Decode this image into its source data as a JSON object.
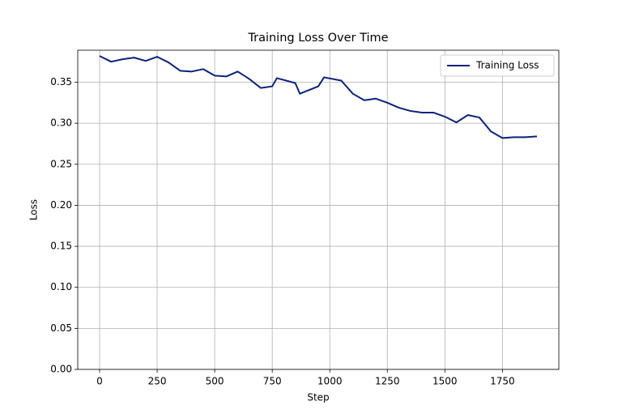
{
  "chart_data": {
    "type": "line",
    "title": "Training Loss Over Time",
    "x_label": "Step",
    "y_label": "Loss",
    "x": [
      0,
      50,
      100,
      150,
      200,
      250,
      300,
      350,
      400,
      450,
      500,
      550,
      600,
      650,
      700,
      750,
      770,
      850,
      870,
      950,
      975,
      1050,
      1100,
      1150,
      1200,
      1250,
      1300,
      1350,
      1400,
      1450,
      1500,
      1550,
      1600,
      1650,
      1700,
      1750,
      1800,
      1850,
      1900
    ],
    "series": [
      {
        "name": "Training Loss",
        "color": "#0d2279",
        "values": [
          0.382,
          0.375,
          0.378,
          0.38,
          0.376,
          0.381,
          0.374,
          0.364,
          0.363,
          0.366,
          0.358,
          0.357,
          0.363,
          0.354,
          0.343,
          0.345,
          0.355,
          0.349,
          0.336,
          0.345,
          0.356,
          0.352,
          0.336,
          0.328,
          0.33,
          0.325,
          0.319,
          0.315,
          0.313,
          0.313,
          0.308,
          0.301,
          0.31,
          0.307,
          0.29,
          0.282,
          0.283,
          0.283,
          0.284
        ]
      }
    ],
    "xlim": [
      -95,
      1995
    ],
    "ylim": [
      0,
      0.389
    ],
    "xticks": [
      0,
      250,
      500,
      750,
      1000,
      1250,
      1500,
      1750
    ],
    "yticks": [
      {
        "value": 0,
        "label": "0.00"
      },
      {
        "value": 0.05,
        "label": "0.05"
      },
      {
        "value": 0.1,
        "label": "0.10"
      },
      0.15,
      {
        "value": 0.2,
        "label": "0.20"
      },
      0.25,
      {
        "value": 0.3,
        "label": "0.30"
      },
      0.35
    ],
    "grid": true,
    "legend": "upper right"
  }
}
